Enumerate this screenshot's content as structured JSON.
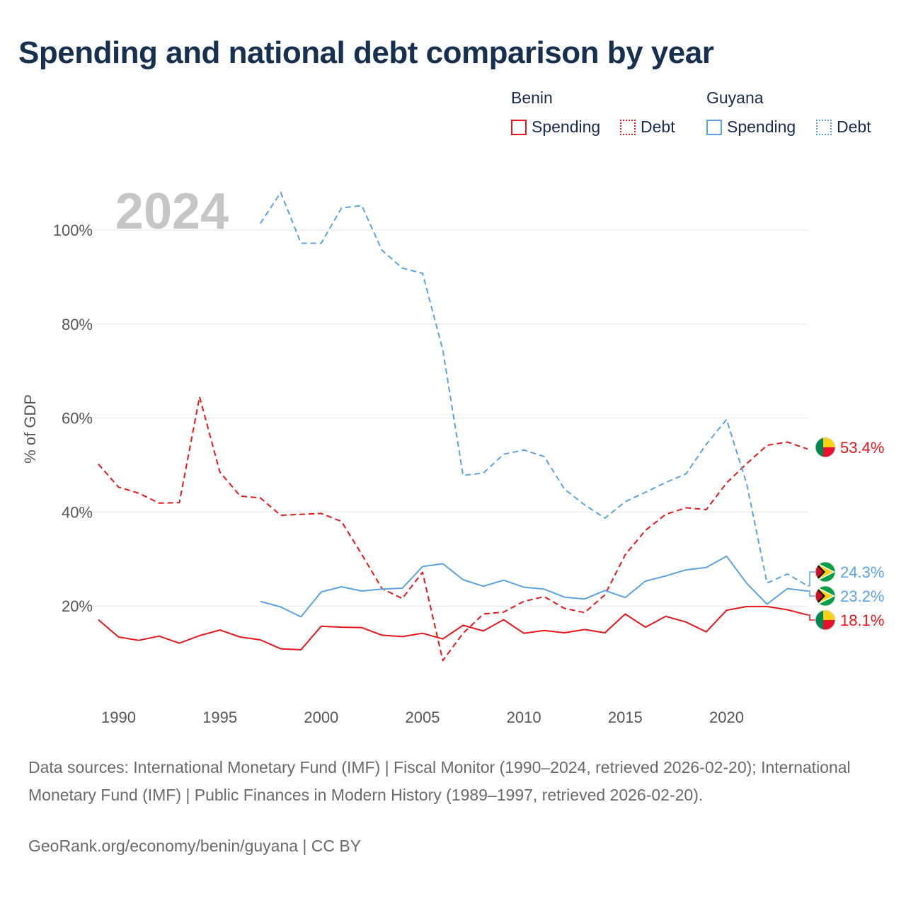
{
  "title": "Spending and national debt comparison by year",
  "legend": {
    "groups": [
      {
        "country": "Benin",
        "color": "#e8161b",
        "items": [
          {
            "label": "Spending",
            "style": "solid"
          },
          {
            "label": "Debt",
            "style": "dotted"
          }
        ]
      },
      {
        "country": "Guyana",
        "color": "#5ba3e0",
        "items": [
          {
            "label": "Spending",
            "style": "solid"
          },
          {
            "label": "Debt",
            "style": "dotted"
          }
        ]
      }
    ]
  },
  "year_label": "2024",
  "footer": {
    "sources": "Data sources: International Monetary Fund (IMF) | Fiscal Monitor (1990–2024, retrieved 2026-02-20); International Monetary Fund (IMF) | Public Finances in Modern History (1989–1997, retrieved 2026-02-20).",
    "credit": "GeoRank.org/economy/benin/guyana | CC BY"
  },
  "chart_data": {
    "type": "line",
    "ylabel": "% of GDP",
    "xlim": [
      1988.9,
      2024
    ],
    "ylim": [
      0,
      110
    ],
    "y_ticks": [
      20,
      40,
      60,
      80,
      100
    ],
    "y_tick_labels": [
      "20%",
      "40%",
      "60%",
      "80%",
      "100%"
    ],
    "x_ticks": [
      1990,
      1995,
      2000,
      2005,
      2010,
      2015,
      2020
    ],
    "x_tick_labels": [
      "1990",
      "1995",
      "2000",
      "2005",
      "2010",
      "2015",
      "2020"
    ],
    "grid": true,
    "series": [
      {
        "name": "Benin Spending",
        "country": "Benin",
        "measure": "Spending",
        "style": "solid",
        "color": "#e8161b",
        "x": [
          1989,
          1990,
          1991,
          1992,
          1993,
          1994,
          1995,
          1996,
          1997,
          1998,
          1999,
          2000,
          2001,
          2002,
          2003,
          2004,
          2005,
          2006,
          2007,
          2008,
          2009,
          2010,
          2011,
          2012,
          2013,
          2014,
          2015,
          2016,
          2017,
          2018,
          2019,
          2020,
          2021,
          2022,
          2023,
          2024
        ],
        "values": [
          17.1,
          13.4,
          12.7,
          13.6,
          12.1,
          13.7,
          14.9,
          13.4,
          12.8,
          10.9,
          10.7,
          15.7,
          15.5,
          15.4,
          13.8,
          13.5,
          14.2,
          13.0,
          15.9,
          14.7,
          17.1,
          14.2,
          14.8,
          14.3,
          15.0,
          14.3,
          18.3,
          15.5,
          17.8,
          16.6,
          14.5,
          19.1,
          19.9,
          19.9,
          19.2,
          18.1
        ],
        "end_label": "18.1%",
        "flag": "benin"
      },
      {
        "name": "Benin Debt",
        "country": "Benin",
        "measure": "Debt",
        "style": "dashed",
        "color": "#e8161b",
        "x": [
          1989,
          1990,
          1991,
          1992,
          1993,
          1994,
          1995,
          1996,
          1997,
          1998,
          1999,
          2000,
          2001,
          2002,
          2003,
          2004,
          2005,
          2006,
          2007,
          2008,
          2009,
          2010,
          2011,
          2012,
          2013,
          2014,
          2015,
          2016,
          2017,
          2018,
          2019,
          2020,
          2021,
          2022,
          2023,
          2024
        ],
        "values": [
          50.2,
          45.3,
          44.0,
          41.9,
          42.0,
          64.5,
          48.5,
          43.4,
          43.0,
          39.3,
          39.5,
          39.7,
          38.0,
          31.0,
          23.7,
          21.6,
          27.2,
          8.4,
          14.2,
          18.3,
          18.7,
          21.0,
          22.0,
          19.5,
          18.6,
          22.4,
          30.9,
          36.1,
          39.5,
          40.9,
          40.5,
          46.2,
          50.3,
          54.2,
          54.9,
          53.4
        ],
        "end_label": "53.4%",
        "flag": "benin"
      },
      {
        "name": "Guyana Spending",
        "country": "Guyana",
        "measure": "Spending",
        "style": "solid",
        "color": "#5ba3e0",
        "x": [
          1997,
          1998,
          1999,
          2000,
          2001,
          2002,
          2003,
          2004,
          2005,
          2006,
          2007,
          2008,
          2009,
          2010,
          2011,
          2012,
          2013,
          2014,
          2015,
          2016,
          2017,
          2018,
          2019,
          2020,
          2021,
          2022,
          2023,
          2024
        ],
        "values": [
          21.0,
          19.8,
          17.7,
          23.0,
          24.1,
          23.2,
          23.6,
          23.8,
          28.4,
          29.0,
          25.6,
          24.2,
          25.5,
          24.0,
          23.6,
          21.9,
          21.5,
          23.3,
          21.8,
          25.3,
          26.4,
          27.7,
          28.2,
          30.6,
          24.8,
          20.4,
          23.7,
          23.2
        ],
        "end_label": "23.2%",
        "flag": "guyana"
      },
      {
        "name": "Guyana Debt",
        "country": "Guyana",
        "measure": "Debt",
        "style": "dashed",
        "color": "#5ba3e0",
        "x": [
          1997,
          1998,
          1999,
          2000,
          2001,
          2002,
          2003,
          2004,
          2005,
          2006,
          2007,
          2008,
          2009,
          2010,
          2011,
          2012,
          2013,
          2014,
          2015,
          2016,
          2017,
          2018,
          2019,
          2020,
          2021,
          2022,
          2023,
          2024
        ],
        "values": [
          101.4,
          108.0,
          97.2,
          97.2,
          104.7,
          105.2,
          95.7,
          91.9,
          90.8,
          74.5,
          47.8,
          48.3,
          52.3,
          53.2,
          51.8,
          44.9,
          41.5,
          38.7,
          42.2,
          44.2,
          46.3,
          48.1,
          54.4,
          59.7,
          45.9,
          24.9,
          26.8,
          24.3
        ],
        "end_label": "24.3%",
        "flag": "guyana"
      }
    ]
  }
}
